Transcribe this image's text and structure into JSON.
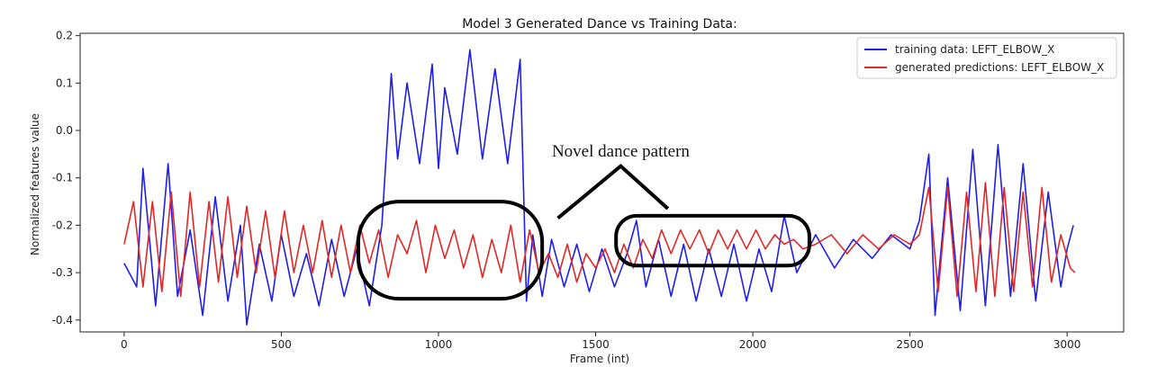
{
  "chart_data": {
    "type": "line",
    "title": "Model 3 Generated Dance vs Training Data:",
    "xlabel": "Frame (int)",
    "ylabel": "Normalized features value",
    "xlim": [
      -140,
      3180
    ],
    "ylim": [
      -0.425,
      0.205
    ],
    "xticks": [
      0,
      500,
      1000,
      1500,
      2000,
      2500,
      3000
    ],
    "yticks": [
      -0.4,
      -0.3,
      -0.2,
      -0.1,
      0.0,
      0.1,
      0.2
    ],
    "xtick_labels": [
      "0",
      "500",
      "1000",
      "1500",
      "2000",
      "2500",
      "3000"
    ],
    "ytick_labels": [
      "-0.4",
      "-0.3",
      "-0.2",
      "-0.1",
      "0.0",
      "0.1",
      "0.2"
    ],
    "grid": false,
    "legend_position": "top-right",
    "series": [
      {
        "name": "training data: LEFT_ELBOW_X",
        "color": "#1f1fe8",
        "x": [
          0,
          40,
          60,
          100,
          140,
          170,
          210,
          250,
          290,
          330,
          370,
          390,
          430,
          470,
          500,
          540,
          580,
          620,
          660,
          700,
          740,
          780,
          820,
          850,
          870,
          900,
          940,
          980,
          1000,
          1020,
          1060,
          1100,
          1140,
          1180,
          1220,
          1260,
          1280,
          1300,
          1330,
          1360,
          1400,
          1440,
          1480,
          1520,
          1560,
          1600,
          1630,
          1660,
          1700,
          1740,
          1780,
          1820,
          1860,
          1900,
          1940,
          1980,
          2020,
          2060,
          2100,
          2140,
          2200,
          2260,
          2320,
          2380,
          2440,
          2500,
          2530,
          2560,
          2580,
          2620,
          2660,
          2700,
          2740,
          2780,
          2820,
          2860,
          2900,
          2940,
          2980,
          3000,
          3020
        ],
        "y": [
          -0.28,
          -0.33,
          -0.08,
          -0.37,
          -0.07,
          -0.35,
          -0.21,
          -0.39,
          -0.14,
          -0.36,
          -0.2,
          -0.41,
          -0.24,
          -0.36,
          -0.22,
          -0.35,
          -0.26,
          -0.37,
          -0.23,
          -0.35,
          -0.25,
          -0.37,
          -0.2,
          0.12,
          -0.06,
          0.1,
          -0.07,
          0.14,
          -0.08,
          0.09,
          -0.05,
          0.17,
          -0.06,
          0.13,
          -0.07,
          0.15,
          -0.36,
          -0.22,
          -0.35,
          -0.23,
          -0.33,
          -0.24,
          -0.34,
          -0.25,
          -0.33,
          -0.26,
          -0.19,
          -0.33,
          -0.23,
          -0.35,
          -0.24,
          -0.36,
          -0.25,
          -0.35,
          -0.24,
          -0.36,
          -0.25,
          -0.34,
          -0.18,
          -0.3,
          -0.22,
          -0.29,
          -0.23,
          -0.27,
          -0.22,
          -0.25,
          -0.19,
          -0.05,
          -0.39,
          -0.1,
          -0.38,
          -0.04,
          -0.37,
          -0.03,
          -0.35,
          -0.07,
          -0.36,
          -0.13,
          -0.33,
          -0.25,
          -0.2
        ]
      },
      {
        "name": "generated predictions: LEFT_ELBOW_X",
        "color": "#e02828",
        "x": [
          0,
          30,
          60,
          90,
          120,
          150,
          180,
          210,
          240,
          270,
          300,
          330,
          360,
          390,
          420,
          450,
          480,
          510,
          540,
          570,
          600,
          630,
          660,
          690,
          720,
          750,
          780,
          810,
          840,
          870,
          900,
          930,
          960,
          990,
          1020,
          1050,
          1080,
          1110,
          1140,
          1170,
          1200,
          1230,
          1260,
          1290,
          1320,
          1350,
          1380,
          1410,
          1440,
          1470,
          1500,
          1530,
          1560,
          1590,
          1620,
          1650,
          1680,
          1710,
          1740,
          1770,
          1800,
          1830,
          1860,
          1890,
          1920,
          1950,
          1980,
          2010,
          2040,
          2070,
          2100,
          2130,
          2160,
          2200,
          2250,
          2300,
          2350,
          2400,
          2450,
          2500,
          2530,
          2560,
          2590,
          2620,
          2650,
          2680,
          2710,
          2740,
          2770,
          2800,
          2830,
          2860,
          2890,
          2920,
          2950,
          2980,
          3010,
          3025
        ],
        "y": [
          -0.24,
          -0.15,
          -0.33,
          -0.15,
          -0.34,
          -0.13,
          -0.35,
          -0.13,
          -0.33,
          -0.15,
          -0.32,
          -0.14,
          -0.31,
          -0.16,
          -0.3,
          -0.17,
          -0.31,
          -0.17,
          -0.3,
          -0.2,
          -0.3,
          -0.19,
          -0.31,
          -0.2,
          -0.3,
          -0.2,
          -0.28,
          -0.21,
          -0.31,
          -0.22,
          -0.26,
          -0.19,
          -0.3,
          -0.2,
          -0.27,
          -0.21,
          -0.29,
          -0.22,
          -0.31,
          -0.23,
          -0.3,
          -0.2,
          -0.32,
          -0.21,
          -0.3,
          -0.26,
          -0.31,
          -0.24,
          -0.32,
          -0.26,
          -0.29,
          -0.25,
          -0.3,
          -0.24,
          -0.29,
          -0.23,
          -0.27,
          -0.21,
          -0.26,
          -0.21,
          -0.25,
          -0.21,
          -0.26,
          -0.21,
          -0.25,
          -0.21,
          -0.25,
          -0.21,
          -0.25,
          -0.22,
          -0.24,
          -0.23,
          -0.25,
          -0.24,
          -0.22,
          -0.26,
          -0.22,
          -0.25,
          -0.22,
          -0.24,
          -0.22,
          -0.12,
          -0.34,
          -0.12,
          -0.35,
          -0.13,
          -0.34,
          -0.11,
          -0.35,
          -0.12,
          -0.34,
          -0.13,
          -0.33,
          -0.12,
          -0.32,
          -0.22,
          -0.29,
          -0.3
        ]
      }
    ],
    "annotations": [
      {
        "text": "Novel dance pattern",
        "x": 1580,
        "y": -0.055
      }
    ],
    "highlight_regions": [
      {
        "x0": 745,
        "x1": 1330,
        "y0": -0.355,
        "y1": -0.15
      },
      {
        "x0": 1565,
        "x1": 2180,
        "y0": -0.285,
        "y1": -0.18
      }
    ],
    "callout_lines": [
      {
        "points": [
          [
            1380,
            -0.185
          ],
          [
            1580,
            -0.075
          ],
          [
            1730,
            -0.165
          ]
        ]
      }
    ]
  }
}
